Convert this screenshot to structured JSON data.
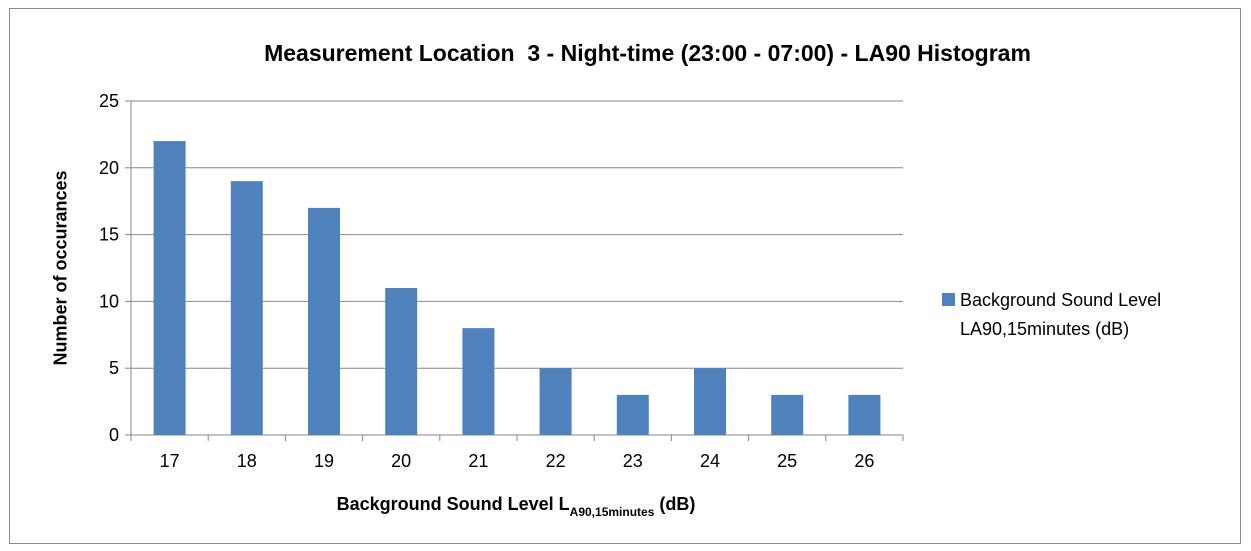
{
  "chart_data": {
    "type": "bar",
    "title": "Measurement Location  3 - Night-time (23:00 - 07:00) - LA90 Histogram",
    "xlabel": "Background Sound Level L",
    "xlabel_subscript": "A90,15minutes",
    "xlabel_suffix": " (dB)",
    "ylabel": "Number of occurances",
    "categories": [
      "17",
      "18",
      "19",
      "20",
      "21",
      "22",
      "23",
      "24",
      "25",
      "26"
    ],
    "series": [
      {
        "name": "Background Sound Level\nLA90,15minutes (dB)",
        "values": [
          22,
          19,
          17,
          11,
          8,
          5,
          3,
          5,
          3,
          3
        ],
        "color": "#4f81bd"
      }
    ],
    "ylim": [
      0,
      25
    ],
    "yticks": [
      "0",
      "5",
      "10",
      "15",
      "20",
      "25"
    ],
    "grid": true,
    "legend_position": "right"
  }
}
